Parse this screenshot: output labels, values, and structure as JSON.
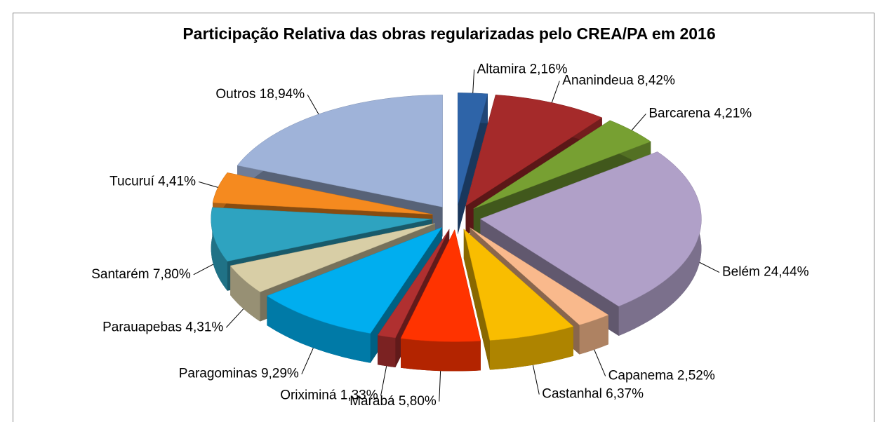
{
  "chart_data": {
    "type": "pie",
    "title": "Participação Relativa das obras regularizadas pelo CREA/PA em 2016",
    "categories": [
      "Altamira",
      "Ananindeua",
      "Barcarena",
      "Belém",
      "Capanema",
      "Castanhal",
      "Marabá",
      "Oriximiná",
      "Paragominas",
      "Parauapebas",
      "Santarém",
      "Tucuruí",
      "Outros"
    ],
    "values": [
      2.16,
      8.42,
      4.21,
      24.44,
      2.52,
      6.37,
      5.8,
      1.33,
      9.29,
      4.31,
      7.8,
      4.41,
      18.94
    ],
    "value_labels": [
      "2,16%",
      "8,42%",
      "4,21%",
      "24,44%",
      "2,52%",
      "6,37%",
      "5,80%",
      "1,33%",
      "9,29%",
      "4,31%",
      "7,80%",
      "4,41%",
      "18,94%"
    ],
    "colors": [
      "#2e64a8",
      "#a52a2a",
      "#77a032",
      "#b0a0c8",
      "#f9b98c",
      "#f9bd00",
      "#ff3300",
      "#b03030",
      "#00aeef",
      "#d8cea6",
      "#2ea3c0",
      "#f58a1f",
      "#9fb3d9"
    ]
  }
}
